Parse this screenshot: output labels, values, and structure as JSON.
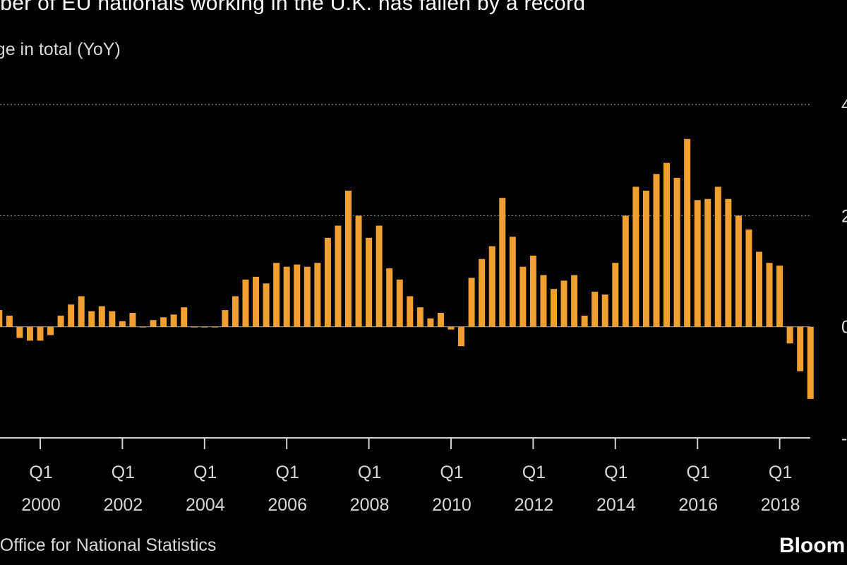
{
  "header": {
    "title": "umber of EU nationals working in the U.K. has fallen by a record",
    "subtitle": "ange in total (YoY)"
  },
  "footer": {
    "source": "e: Office for National Statistics",
    "brand": "Bloom"
  },
  "colors": {
    "background": "#000000",
    "bar": "#f0a030",
    "grid": "#8c8c8c",
    "text": "#ffffff"
  },
  "chart_data": {
    "type": "bar",
    "title": "umber of EU nationals working in the U.K. has fallen by a record",
    "subtitle": "ange in total (YoY)",
    "x_start_year": 1999,
    "x_start_quarter": 1,
    "periods_per_year": 4,
    "values": [
      30,
      20,
      -20,
      -25,
      -25,
      -15,
      20,
      40,
      55,
      28,
      37,
      28,
      10,
      25,
      0,
      12,
      17,
      22,
      35,
      0,
      0,
      0,
      30,
      55,
      85,
      90,
      78,
      115,
      108,
      112,
      108,
      115,
      160,
      182,
      245,
      200,
      160,
      182,
      105,
      85,
      55,
      35,
      15,
      25,
      -5,
      -35,
      88,
      122,
      145,
      232,
      162,
      108,
      128,
      93,
      68,
      83,
      93,
      20,
      63,
      58,
      115,
      200,
      252,
      245,
      275,
      295,
      268,
      338,
      228,
      230,
      252,
      230,
      200,
      175,
      135,
      115,
      110,
      -30,
      -80,
      -130
    ],
    "ylim": [
      -200,
      400
    ],
    "yticks": [
      {
        "value": 400,
        "label": "4"
      },
      {
        "value": 200,
        "label": "2"
      },
      {
        "value": 0,
        "label": "0"
      },
      {
        "value": -200,
        "label": "-"
      }
    ],
    "xticks": [
      {
        "year": 2000,
        "quarter_label": "Q1",
        "year_label": "2000"
      },
      {
        "year": 2002,
        "quarter_label": "Q1",
        "year_label": "2002"
      },
      {
        "year": 2004,
        "quarter_label": "Q1",
        "year_label": "2004"
      },
      {
        "year": 2006,
        "quarter_label": "Q1",
        "year_label": "2006"
      },
      {
        "year": 2008,
        "quarter_label": "Q1",
        "year_label": "2008"
      },
      {
        "year": 2010,
        "quarter_label": "Q1",
        "year_label": "2010"
      },
      {
        "year": 2012,
        "quarter_label": "Q1",
        "year_label": "2012"
      },
      {
        "year": 2014,
        "quarter_label": "Q1",
        "year_label": "2014"
      },
      {
        "year": 2016,
        "quarter_label": "Q1",
        "year_label": "2016"
      },
      {
        "year": 2018,
        "quarter_label": "Q1",
        "year_label": "2018"
      }
    ],
    "grid": true,
    "legend": "none"
  }
}
